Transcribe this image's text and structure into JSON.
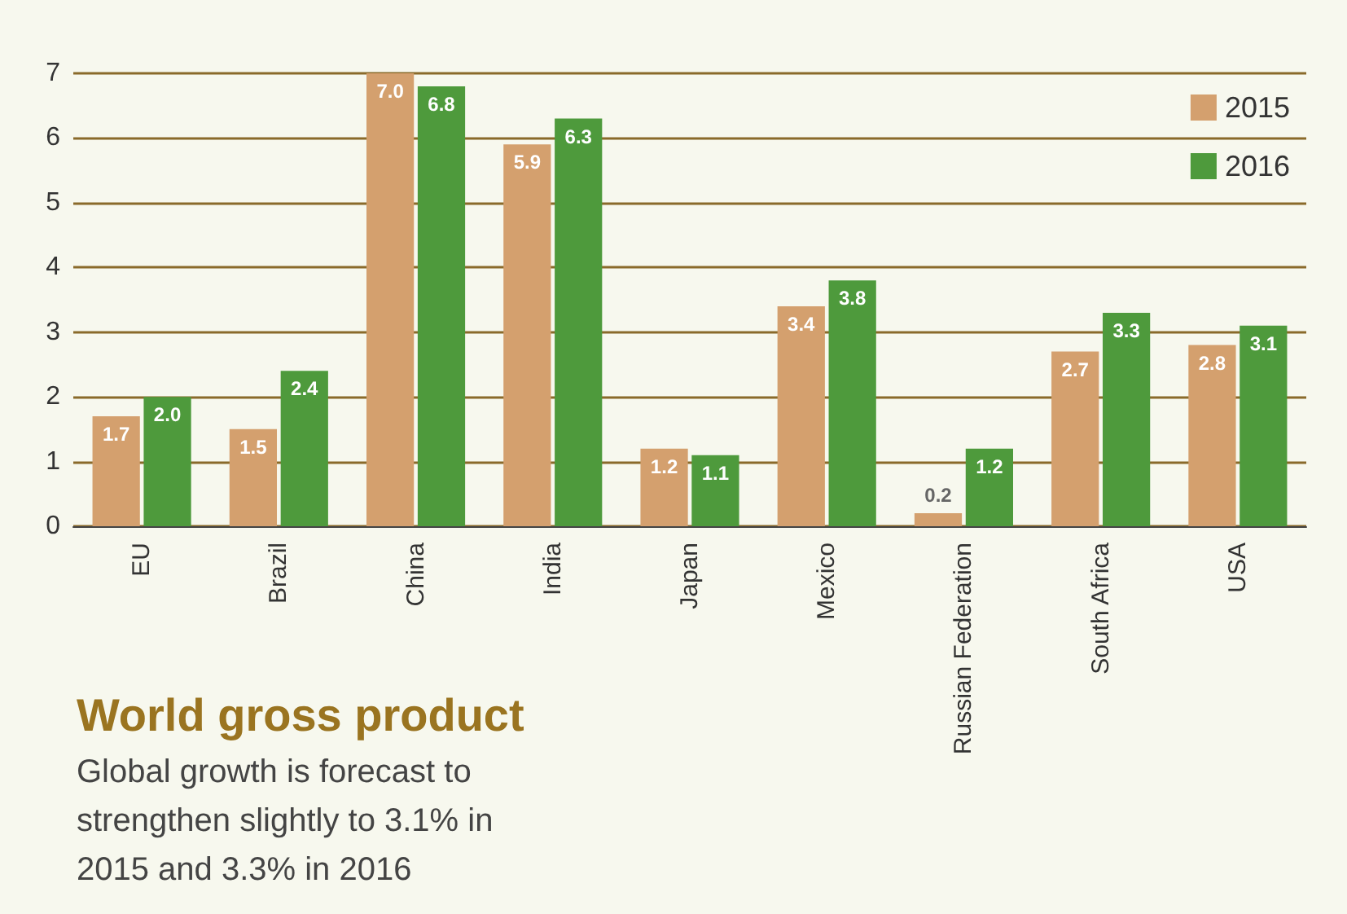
{
  "chart_data": {
    "type": "bar",
    "title": "World gross product",
    "subtitle": "Global growth is forecast to\nstrengthen slightly to 3.1% in\n2015 and 3.3% in 2016",
    "categories": [
      "EU",
      "Brazil",
      "China",
      "India",
      "Japan",
      "Mexico",
      "Russian Federation",
      "South Africa",
      "USA"
    ],
    "series": [
      {
        "name": "2015",
        "color": "#d4a06e",
        "values": [
          1.7,
          1.5,
          7.0,
          5.9,
          1.2,
          3.4,
          0.2,
          2.7,
          2.8
        ],
        "value_labels": [
          "1.7",
          "1.5",
          "7.0",
          "5.9",
          "1.2",
          "3.4",
          "0.2",
          "2.7",
          "2.8"
        ]
      },
      {
        "name": "2016",
        "color": "#4e9a3c",
        "values": [
          2.0,
          2.4,
          6.8,
          6.3,
          1.1,
          3.8,
          1.2,
          3.3,
          3.1
        ],
        "value_labels": [
          "2.0",
          "2.4",
          "6.8",
          "6.3",
          "1.1",
          "3.8",
          "1.2",
          "3.3",
          "3.1"
        ]
      }
    ],
    "ylim": [
      0,
      7
    ],
    "yticks": [
      0,
      1,
      2,
      3,
      4,
      5,
      6,
      7
    ],
    "grid": "y",
    "legend": "top right"
  }
}
